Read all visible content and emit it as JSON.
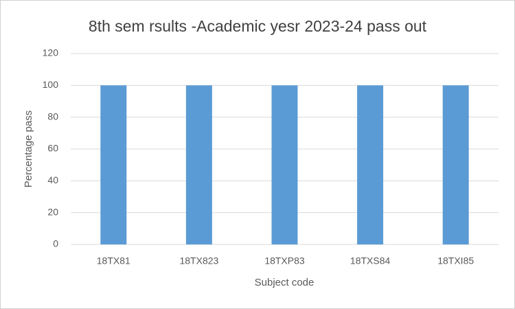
{
  "chart_data": {
    "type": "bar",
    "title": "8th sem rsults -Academic yesr 2023-24 pass out",
    "x_label": "Subject code",
    "y_label": "Percentage pass",
    "categories": [
      "18TX81",
      "18TX823",
      "18TXP83",
      "18TXS84",
      "18TXI85"
    ],
    "values": [
      100,
      100,
      100,
      100,
      100
    ],
    "color": "#5b9bd5",
    "ylim": [
      0,
      120
    ],
    "yticks": [
      0,
      20,
      40,
      60,
      80,
      100,
      120
    ],
    "grid": true
  }
}
